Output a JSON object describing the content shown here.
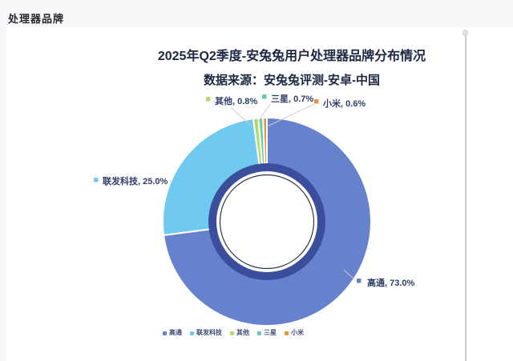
{
  "page": {
    "heading": "处理器品牌"
  },
  "chart_data": {
    "type": "pie",
    "subtype": "donut",
    "title": "2025年Q2季度-安兔兔用户处理器品牌分布情况",
    "subtitle": "数据来源：安兔兔评测-安卓-中国",
    "start_angle": "top",
    "direction": "clockwise",
    "legend_position": "bottom",
    "series": [
      {
        "name": "高通",
        "value": 73.0,
        "percent_label": "高通, 73.0%",
        "color": "#6682cd"
      },
      {
        "name": "联发科技",
        "value": 25.0,
        "percent_label": "联发科技, 25.0%",
        "color": "#70c9ee"
      },
      {
        "name": "其他",
        "value": 0.8,
        "percent_label": "其他, 0.8%",
        "color": "#b5d86a"
      },
      {
        "name": "三星",
        "value": 0.7,
        "percent_label": "三星, 0.7%",
        "color": "#67cdaf"
      },
      {
        "name": "小米",
        "value": 0.6,
        "percent_label": "小米, 0.6%",
        "color": "#e6963f"
      }
    ],
    "colors": {
      "inner_ring": "#3b4e9b",
      "inner_circle": "#ffffff",
      "inner_outline": "#2a3550",
      "slice_separator": "#ffffff",
      "label_text": "#2e3e68",
      "leader_line": "#c9cdd6",
      "legend_text": "#3a4a77",
      "title_text": "#1d2742"
    }
  }
}
